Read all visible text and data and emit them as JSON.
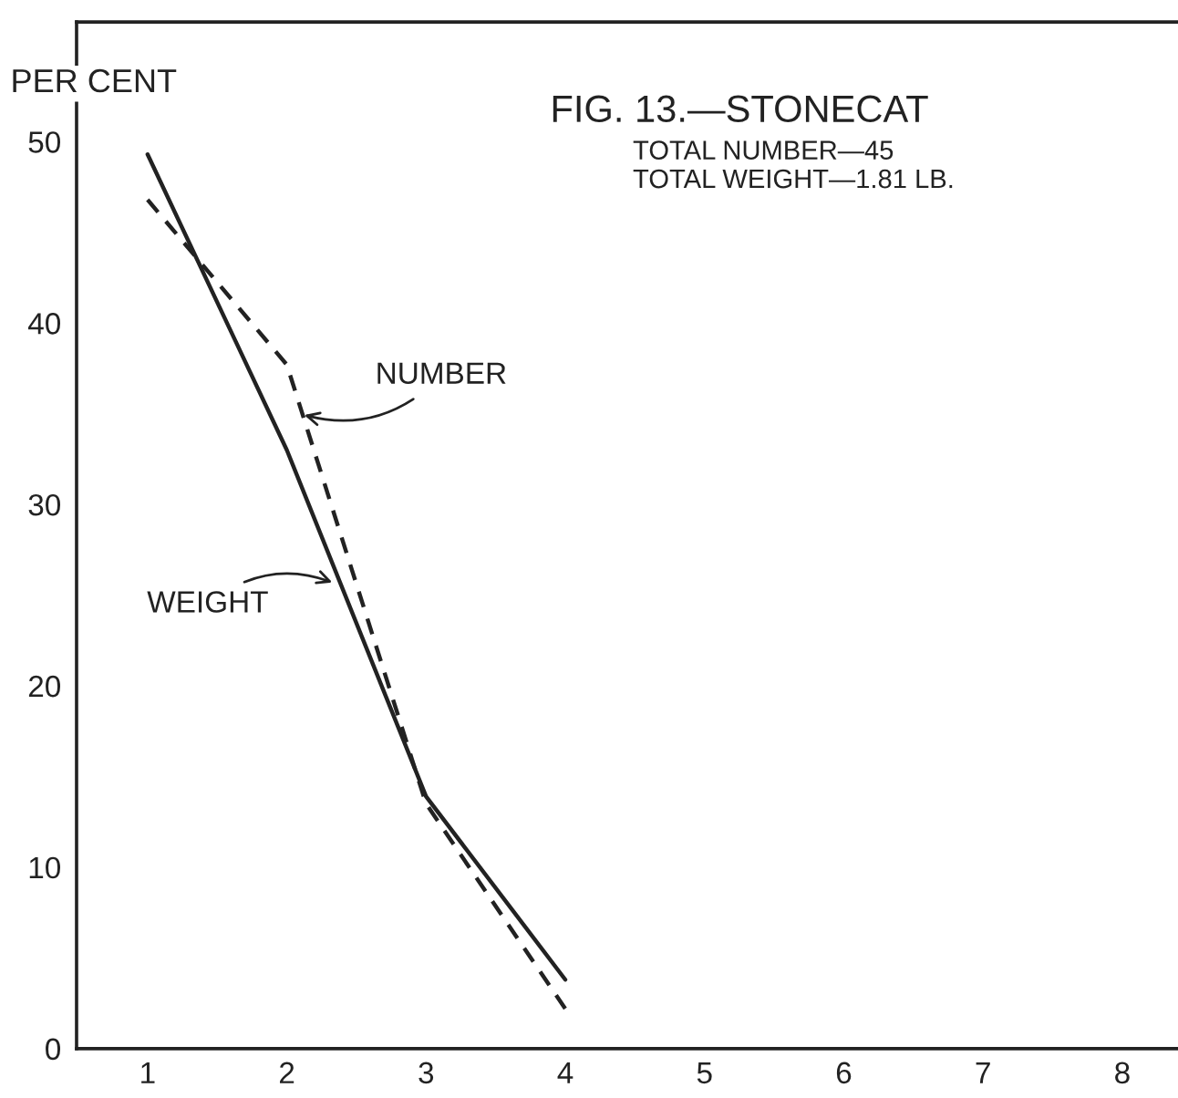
{
  "chart_data": {
    "type": "line",
    "title": "FIG. 13.—STONECAT",
    "subtitle": "TOTAL NUMBER—45\nTOTAL WEIGHT—1.81 LB.",
    "ylabel": "PER CENT",
    "x": [
      1,
      2,
      3,
      4
    ],
    "series": [
      {
        "color": "#222222",
        "line_style": "solid",
        "values": [
          49.3,
          33.0,
          13.9,
          3.8
        ]
      },
      {
        "color": "#222222",
        "line_style": "dashed",
        "values": [
          46.8,
          37.7,
          13.5,
          2.2
        ]
      }
    ],
    "annotations": [
      {
        "text": "NUMBER",
        "x": 2.09,
        "y": 35.0
      },
      {
        "text": "WEIGHT",
        "x": 2.36,
        "y": 25.6
      }
    ],
    "xlim": [
      0.49,
      8.4
    ],
    "ylim": [
      0,
      56.6
    ],
    "xticks": [
      1,
      2,
      3,
      4,
      5,
      6,
      7,
      8
    ],
    "yticks": [
      0,
      10,
      20,
      30,
      40,
      50
    ],
    "grid": false,
    "legend": false,
    "marker": "none"
  }
}
